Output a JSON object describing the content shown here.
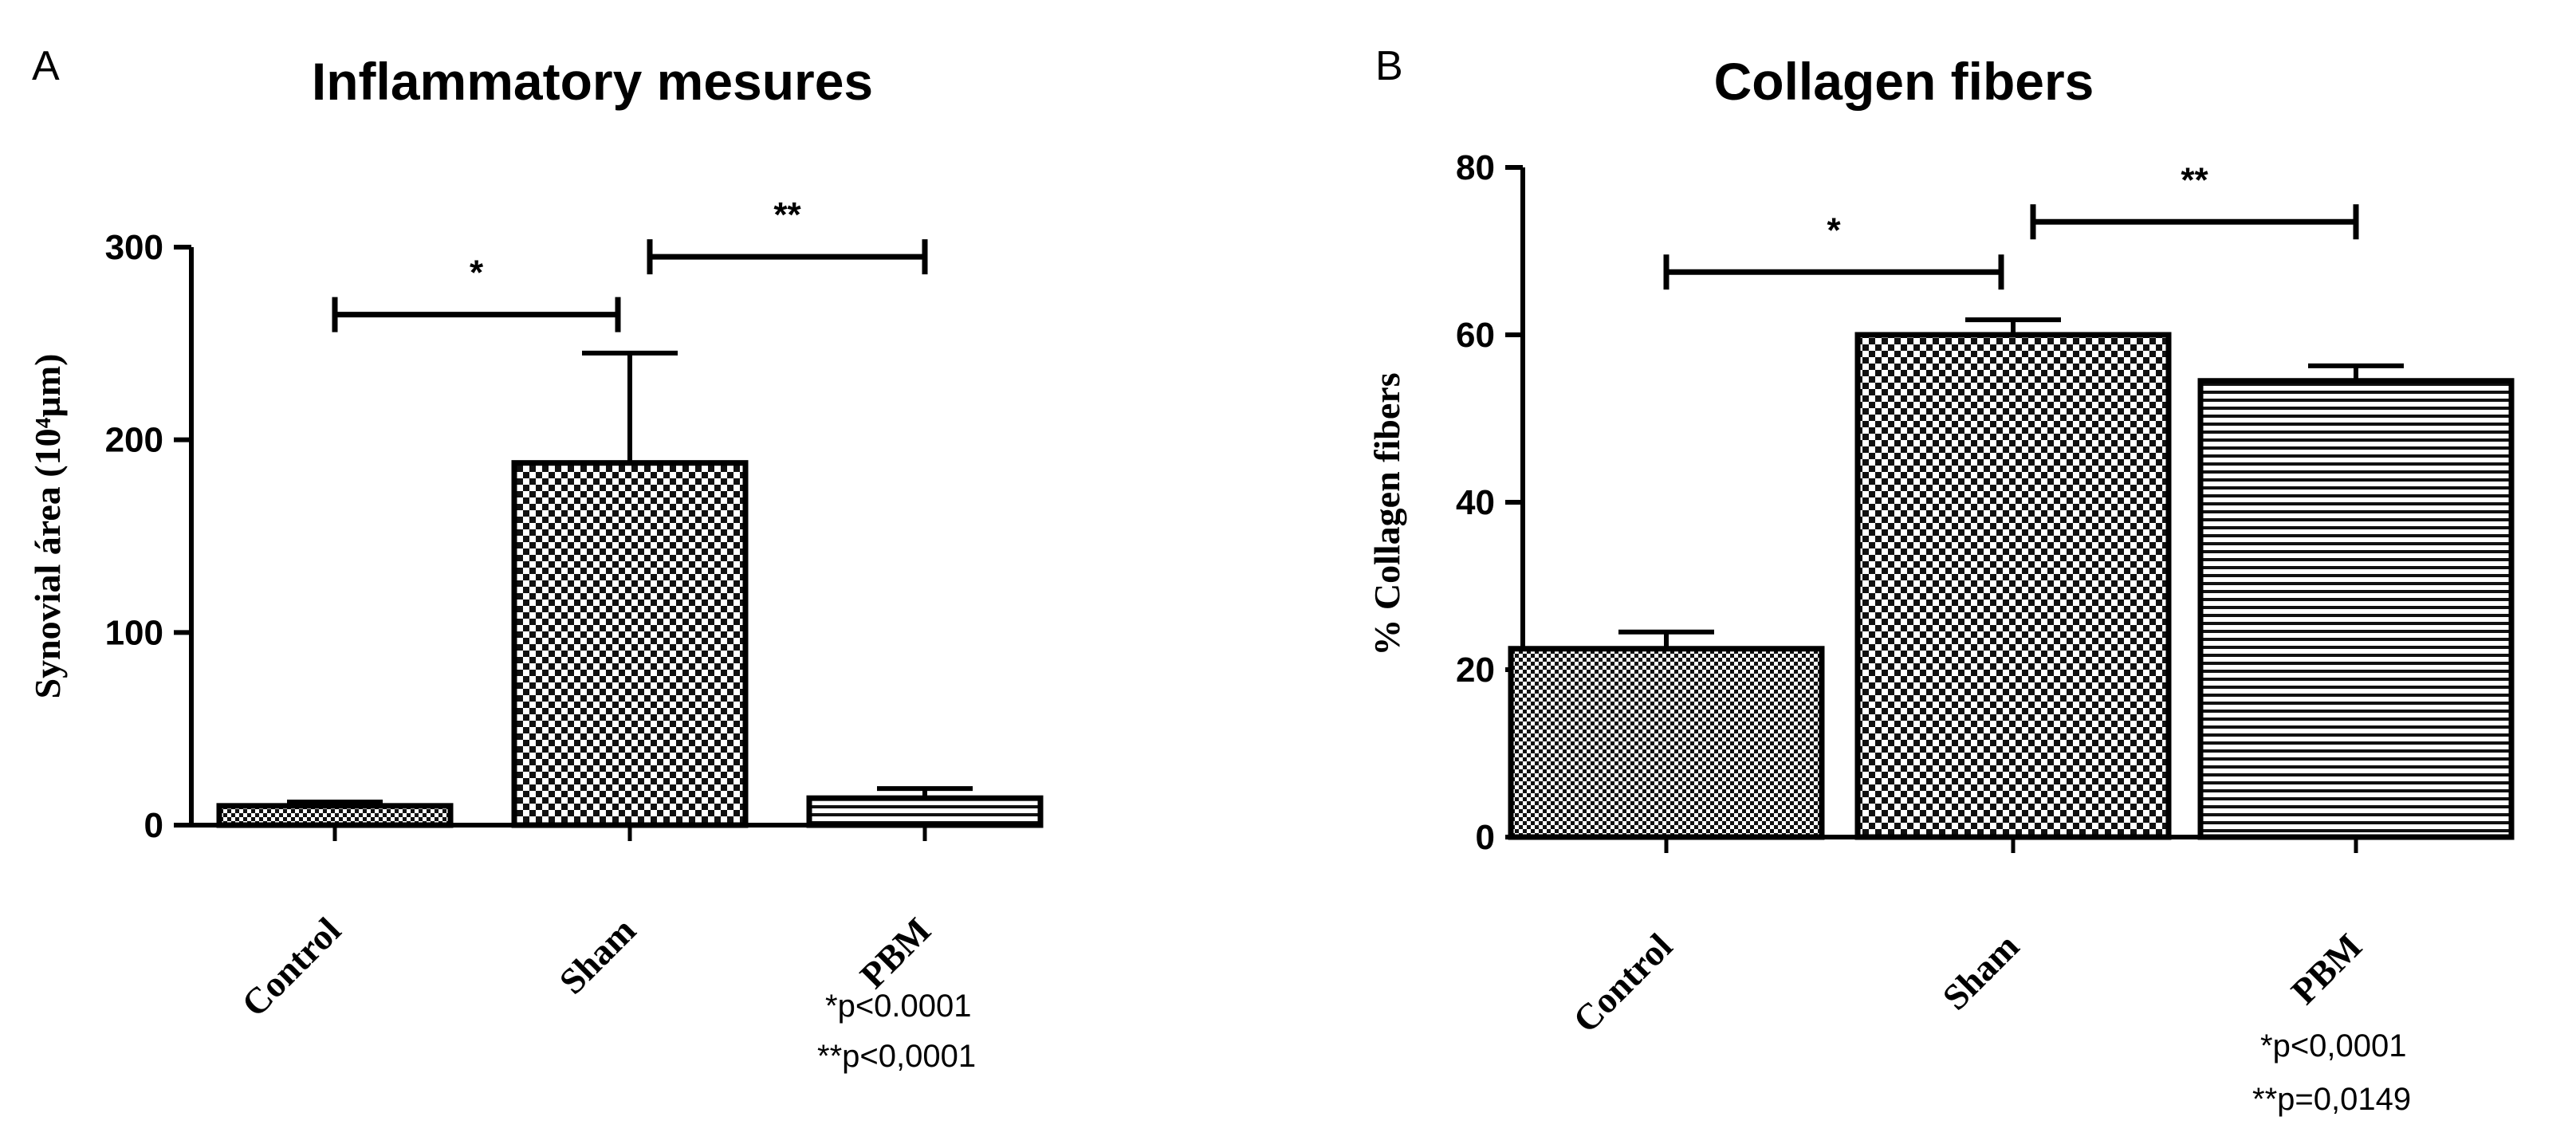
{
  "chart_data": [
    {
      "type": "bar",
      "panel": "A",
      "title": "Inflammatory mesures",
      "ylabel": "Synovial área (10⁴µm)",
      "xlabel": "",
      "categories": [
        "Control",
        "Sham",
        "PBM"
      ],
      "values": [
        10,
        188,
        14
      ],
      "errors": [
        2,
        57,
        5
      ],
      "ylim": [
        0,
        300
      ],
      "yticks": [
        "0",
        "100",
        "200",
        "300"
      ],
      "grid": false,
      "significance": [
        {
          "from": 0,
          "to": 1,
          "label": "*",
          "y": 265
        },
        {
          "from": 1,
          "to": 2,
          "label": "**",
          "y": 295
        }
      ],
      "pvalues": [
        "*p<0.0001",
        "**p<0,0001"
      ],
      "patterns": [
        "dense-checker",
        "checker",
        "horizontal-lines"
      ]
    },
    {
      "type": "bar",
      "panel": "B",
      "title": "Collagen fibers",
      "ylabel": "% Collagen fibers",
      "xlabel": "",
      "categories": [
        "Control",
        "Sham",
        "PBM"
      ],
      "values": [
        22.5,
        60,
        54.5
      ],
      "errors": [
        2,
        1.8,
        1.8
      ],
      "ylim": [
        0,
        80
      ],
      "yticks": [
        "0",
        "20",
        "40",
        "60",
        "80"
      ],
      "grid": false,
      "significance": [
        {
          "from": 0,
          "to": 1,
          "label": "*",
          "y": 67.5
        },
        {
          "from": 1,
          "to": 2,
          "label": "**",
          "y": 73.5
        }
      ],
      "pvalues": [
        "*p<0,0001",
        "**p=0,0149"
      ],
      "patterns": [
        "dense-checker",
        "checker",
        "horizontal-lines"
      ]
    }
  ]
}
